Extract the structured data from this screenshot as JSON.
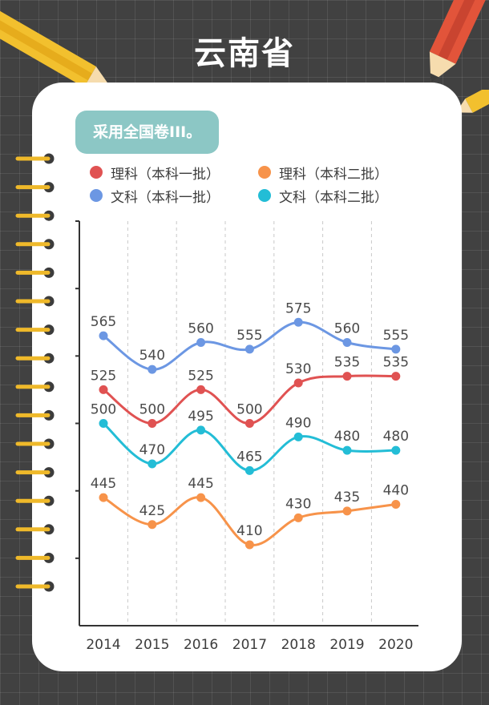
{
  "page": {
    "title": "云南省",
    "subtitle": "采用全国卷III。"
  },
  "colors": {
    "bg": "#414141",
    "card": "#ffffff",
    "subtitle_bg": "#8cc7c5",
    "series": [
      "#e05252",
      "#f7934a",
      "#6c97e3",
      "#23bdd6"
    ]
  },
  "chart_data": {
    "type": "line",
    "x": [
      "2014",
      "2015",
      "2016",
      "2017",
      "2018",
      "2019",
      "2020"
    ],
    "ylim": [
      350,
      650
    ],
    "grid": "vertical dashed",
    "legend_position": "top",
    "series": [
      {
        "name": "理科（本科一批）",
        "values": [
          525,
          500,
          525,
          500,
          530,
          535,
          535
        ]
      },
      {
        "name": "理科（本科二批）",
        "values": [
          445,
          425,
          445,
          410,
          430,
          435,
          440
        ]
      },
      {
        "name": "文科（本科一批）",
        "values": [
          565,
          540,
          560,
          555,
          575,
          560,
          555
        ]
      },
      {
        "name": "文科（本科二批）",
        "values": [
          500,
          470,
          495,
          465,
          490,
          480,
          480
        ]
      }
    ]
  }
}
